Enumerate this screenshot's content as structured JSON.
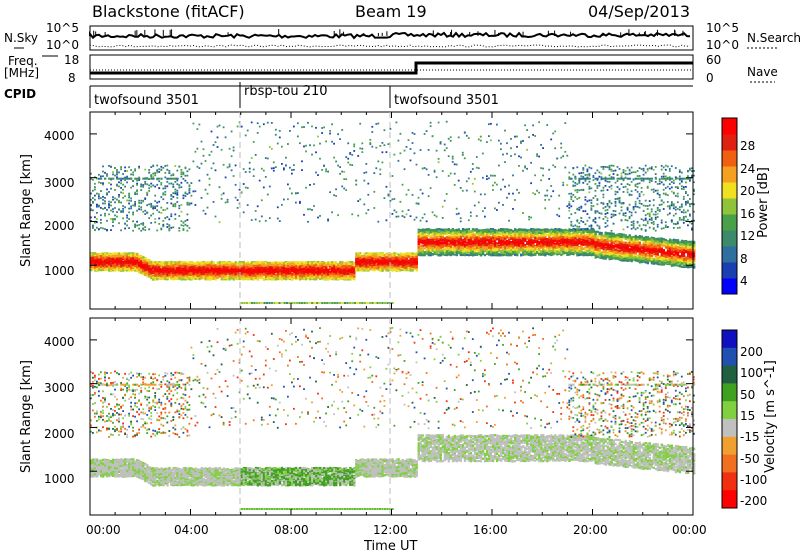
{
  "header": {
    "station": "Blackstone (fitACF)",
    "beam": "Beam 19",
    "date": "04/Sep/2013"
  },
  "top_panels": {
    "nsky_label": "N.Sky",
    "nsky_ticks": [
      "10^5",
      "10^0"
    ],
    "nsearch_label": "N.Search",
    "nsearch_ticks": [
      "10^5",
      "10^0"
    ],
    "freq_label_1": "Freq.",
    "freq_label_2": "[MHz]",
    "freq_ticks": [
      "18",
      "8"
    ],
    "nave_label": "Nave",
    "nave_ticks": [
      "60",
      "0"
    ],
    "cpid_label": "CPID",
    "cpid_segments": [
      "twofsound 3501",
      "rbsp-tou 210",
      "twofsound 3501"
    ]
  },
  "x_axis": {
    "label": "Time UT",
    "ticks": [
      "00:00",
      "04:00",
      "08:00",
      "12:00",
      "16:00",
      "20:00",
      "00:00"
    ]
  },
  "chart_data": [
    {
      "type": "heatmap",
      "panel": "power",
      "xlabel": "Time UT",
      "ylabel": "Slant Range [km]",
      "ylim": [
        0,
        4500
      ],
      "yticks": [
        1000,
        2000,
        3000,
        4000
      ],
      "colorbar_label": "Power [dB]",
      "colorbar_ticks": [
        "28",
        "24",
        "20",
        "16",
        "12",
        "8",
        "4"
      ],
      "colors": [
        "#0000ff",
        "#1a3fb0",
        "#2f6fa0",
        "#3b8a6a",
        "#49a048",
        "#8fc43a",
        "#f0e020",
        "#f5a020",
        "#f06010",
        "#e02010",
        "#ff0000"
      ]
    },
    {
      "type": "heatmap",
      "panel": "velocity",
      "xlabel": "Time UT",
      "ylabel": "Slant Range [km]",
      "ylim": [
        0,
        4500
      ],
      "yticks": [
        1000,
        2000,
        3000,
        4000
      ],
      "colorbar_label": "Velocity [m s^-1]",
      "colorbar_ticks": [
        "200",
        "100",
        "50",
        "15",
        "-15",
        "-50",
        "-100",
        "-200"
      ],
      "colors": [
        "#1010c0",
        "#2050b0",
        "#206040",
        "#40a020",
        "#80d040",
        "#c0c0c0",
        "#f0a030",
        "#f07020",
        "#f03010",
        "#ff0000"
      ]
    }
  ]
}
